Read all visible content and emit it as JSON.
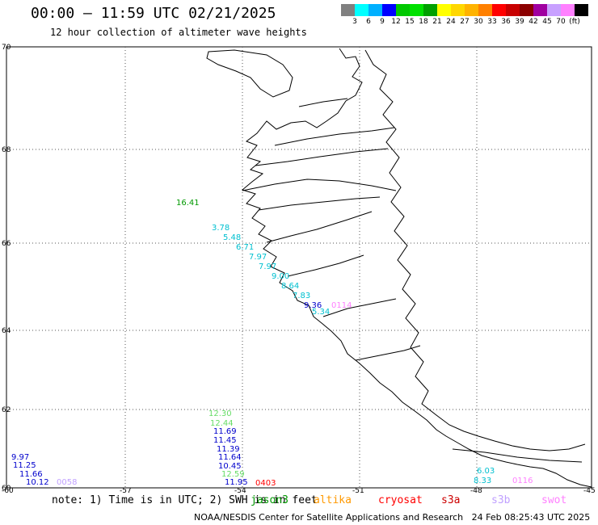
{
  "header": {
    "title": "00:00 – 11:59 UTC 02/21/2025",
    "subtitle": "12 hour collection of altimeter wave heights"
  },
  "colorbar": {
    "labels": [
      "3",
      "6",
      "9",
      "12",
      "15",
      "18",
      "21",
      "24",
      "27",
      "30",
      "33",
      "36",
      "39",
      "42",
      "45",
      "70",
      "(ft)"
    ],
    "colors": [
      "#808080",
      "#00ffff",
      "#00b0ff",
      "#0000ff",
      "#00c800",
      "#00e100",
      "#00a000",
      "#ffff00",
      "#ffd700",
      "#ffb300",
      "#ff8000",
      "#ff0000",
      "#c80000",
      "#8b0000",
      "#a000a0",
      "#c8a0ff",
      "#ff80ff",
      "#000000"
    ]
  },
  "axes": {
    "lat_labels": [
      "70",
      "68",
      "66",
      "64",
      "62",
      "60"
    ],
    "lon_labels": [
      "-60",
      "-57",
      "-54",
      "-51",
      "-48",
      "-45"
    ]
  },
  "wave_labels": [
    {
      "text": "16.41",
      "color": "#009900"
    },
    {
      "text": "3.78",
      "color": "#00c0d0"
    },
    {
      "text": "5.48",
      "color": "#00c0d0"
    },
    {
      "text": "6.71",
      "color": "#00c0d0"
    },
    {
      "text": "7.97",
      "color": "#00c0d0"
    },
    {
      "text": "7.97",
      "color": "#00c0d0"
    },
    {
      "text": "9.00",
      "color": "#00c0d0"
    },
    {
      "text": "8.64",
      "color": "#00c0d0"
    },
    {
      "text": "7.83",
      "color": "#00c0d0"
    },
    {
      "text": "9.36",
      "color": "#0000cc"
    },
    {
      "text": "5.34",
      "color": "#00c0d0"
    },
    {
      "text": "0114",
      "color": "#ff80ff"
    },
    {
      "text": "12.30",
      "color": "#66dd66"
    },
    {
      "text": "12.44",
      "color": "#66dd66"
    },
    {
      "text": "11.69",
      "color": "#0000cc"
    },
    {
      "text": "11.45",
      "color": "#0000cc"
    },
    {
      "text": "11.39",
      "color": "#0000cc"
    },
    {
      "text": "11.64",
      "color": "#0000cc"
    },
    {
      "text": "10.45",
      "color": "#0000cc"
    },
    {
      "text": "12.59",
      "color": "#66dd66"
    },
    {
      "text": "11.95",
      "color": "#0000cc"
    },
    {
      "text": "0403",
      "color": "#ff0000"
    },
    {
      "text": "9.97",
      "color": "#0000cc"
    },
    {
      "text": "11.25",
      "color": "#0000cc"
    },
    {
      "text": "11.66",
      "color": "#0000cc"
    },
    {
      "text": "10.12",
      "color": "#0000cc"
    },
    {
      "text": "0058",
      "color": "#c0a0ff"
    },
    {
      "text": "6.03",
      "color": "#00c0d0"
    },
    {
      "text": "8.33",
      "color": "#00c0d0"
    },
    {
      "text": "0116",
      "color": "#ff80ff"
    }
  ],
  "note": "note: 1) Time is in UTC; 2) SWH is in feet",
  "legend": [
    {
      "name": "jason3",
      "color": "#009900"
    },
    {
      "name": "altika",
      "color": "#ff9900"
    },
    {
      "name": "cryosat",
      "color": "#ff0000"
    },
    {
      "name": "s3a",
      "color": "#cc0000"
    },
    {
      "name": "s3b",
      "color": "#c0a0ff"
    },
    {
      "name": "swot",
      "color": "#ff80ff"
    }
  ],
  "footer": {
    "credit": "NOAA/NESDIS Center for Satellite Applications and Research",
    "timestamp": "24 Feb 08:25:43 UTC 2025"
  }
}
